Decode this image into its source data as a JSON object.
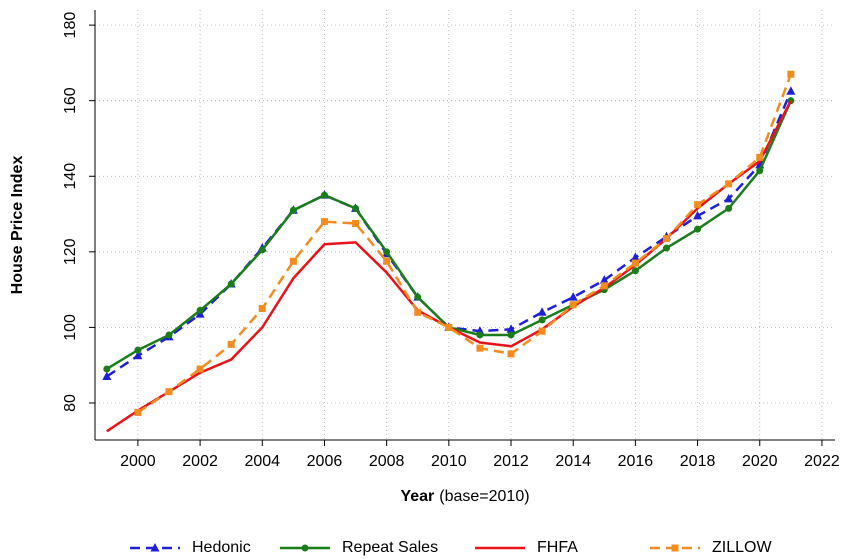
{
  "chart_data": {
    "type": "line",
    "xlabel": "Year",
    "xlabel_note": "(base=2010)",
    "ylabel": "House Price Index",
    "x": [
      1999,
      2000,
      2001,
      2002,
      2003,
      2004,
      2005,
      2006,
      2007,
      2008,
      2009,
      2010,
      2011,
      2012,
      2013,
      2014,
      2015,
      2016,
      2017,
      2018,
      2019,
      2020,
      2021
    ],
    "series": [
      {
        "name": "Hedonic",
        "color": "#1f1fd6",
        "dash": true,
        "marker": "triangle",
        "values": [
          87,
          92.5,
          97.5,
          103.5,
          111.5,
          121,
          131,
          135,
          131.5,
          119.5,
          108,
          100,
          99,
          99.5,
          104,
          108,
          112.5,
          118.5,
          124,
          129.5,
          134,
          143,
          162.5
        ]
      },
      {
        "name": "Repeat Sales",
        "color": "#1a7d1a",
        "dash": false,
        "marker": "circle",
        "values": [
          89,
          94,
          98,
          104.5,
          111.5,
          120.5,
          131,
          135,
          131.5,
          120,
          108,
          100,
          98,
          98,
          102,
          106,
          110,
          115,
          121,
          126,
          131.5,
          141.5,
          160
        ]
      },
      {
        "name": "FHFA",
        "color": "#e8141a",
        "dash": false,
        "marker": "none",
        "values": [
          72.5,
          78,
          83,
          88,
          91.5,
          100,
          113,
          122,
          122.5,
          114.5,
          104.5,
          100,
          96,
          95,
          99.5,
          105.5,
          110.5,
          116.5,
          123.5,
          131.5,
          138,
          144,
          160
        ]
      },
      {
        "name": "ZILLOW",
        "color": "#f28c1e",
        "dash": true,
        "marker": "square",
        "values": [
          null,
          77.5,
          83,
          89,
          95.5,
          105,
          117.5,
          128,
          127.5,
          117.5,
          104,
          100,
          94.5,
          93,
          99,
          106,
          111,
          117,
          123.5,
          132.5,
          138,
          145,
          167
        ]
      }
    ],
    "xlim": [
      1998.62,
      2022.42
    ],
    "xticks": [
      2000,
      2002,
      2004,
      2006,
      2008,
      2010,
      2012,
      2014,
      2016,
      2018,
      2020,
      2022
    ],
    "ylim": [
      70.2,
      184
    ],
    "yticks": [
      80,
      100,
      120,
      140,
      160,
      180
    ],
    "grid": true,
    "legend": "bottom"
  }
}
